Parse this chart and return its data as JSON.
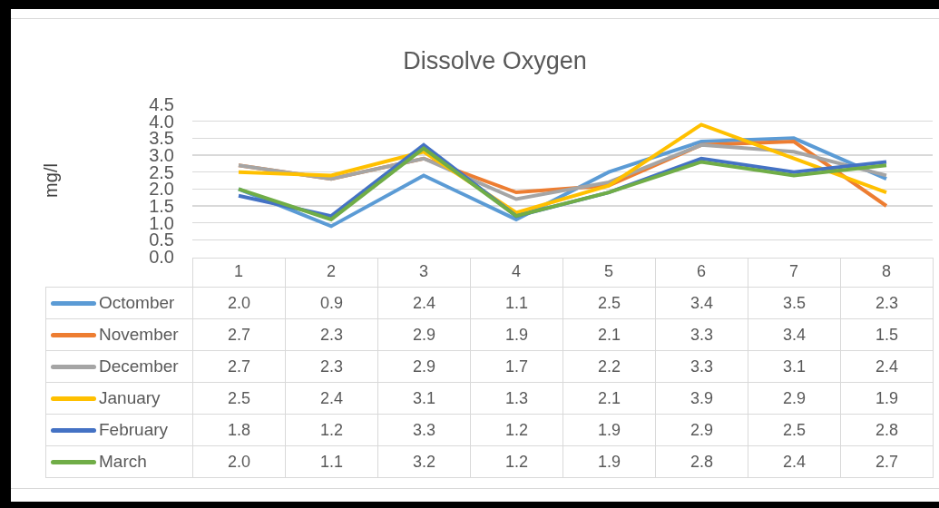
{
  "chart_data": {
    "type": "line",
    "title": "Dissolve Oxygen",
    "ylabel": "mg/l",
    "categories": [
      "1",
      "2",
      "3",
      "4",
      "5",
      "6",
      "7",
      "8"
    ],
    "series": [
      {
        "name": "Octomber",
        "color": "#5b9bd5",
        "values": [
          2.0,
          0.9,
          2.4,
          1.1,
          2.5,
          3.4,
          3.5,
          2.3
        ],
        "value_labels": [
          "2.0",
          "0.9",
          "2.4",
          "1.1",
          "2.5",
          "3.4",
          "3.5",
          "2.3"
        ]
      },
      {
        "name": "November",
        "color": "#ed7d31",
        "values": [
          2.7,
          2.3,
          2.9,
          1.9,
          2.1,
          3.3,
          3.4,
          1.5
        ],
        "value_labels": [
          "2.7",
          "2.3",
          "2.9",
          "1.9",
          "2.1",
          "3.3",
          "3.4",
          "1.5"
        ]
      },
      {
        "name": "December",
        "color": "#a5a5a5",
        "values": [
          2.7,
          2.3,
          2.9,
          1.7,
          2.2,
          3.3,
          3.1,
          2.4
        ],
        "value_labels": [
          "2.7",
          "2.3",
          "2.9",
          "1.7",
          "2.2",
          "3.3",
          "3.1",
          "2.4"
        ]
      },
      {
        "name": "January",
        "color": "#ffc000",
        "values": [
          2.5,
          2.4,
          3.1,
          1.3,
          2.1,
          3.9,
          2.9,
          1.9
        ],
        "value_labels": [
          "2.5",
          "2.4",
          "3.1",
          "1.3",
          "2.1",
          "3.9",
          "2.9",
          "1.9"
        ]
      },
      {
        "name": "February",
        "color": "#4472c4",
        "values": [
          1.8,
          1.2,
          3.3,
          1.2,
          1.9,
          2.9,
          2.5,
          2.8
        ],
        "value_labels": [
          "1.8",
          "1.2",
          "3.3",
          "1.2",
          "1.9",
          "2.9",
          "2.5",
          "2.8"
        ]
      },
      {
        "name": "March",
        "color": "#70ad47",
        "values": [
          2.0,
          1.1,
          3.2,
          1.2,
          1.9,
          2.8,
          2.4,
          2.7
        ],
        "value_labels": [
          "2.0",
          "1.1",
          "3.2",
          "1.2",
          "1.9",
          "2.8",
          "2.4",
          "2.7"
        ]
      }
    ],
    "ylim": [
      0,
      4.5
    ],
    "yticks": [
      {
        "value": 0,
        "label": "0.0"
      },
      0.5,
      {
        "value": 1,
        "label": "1.0"
      },
      1.5,
      {
        "value": 2,
        "label": "2.0"
      },
      2.5,
      {
        "value": 3,
        "label": "3.0"
      },
      3.5,
      {
        "value": 4,
        "label": "4.0"
      },
      4.5
    ],
    "grid": "y",
    "legend": "bottom left",
    "marker": "none",
    "line_style": "solid"
  }
}
